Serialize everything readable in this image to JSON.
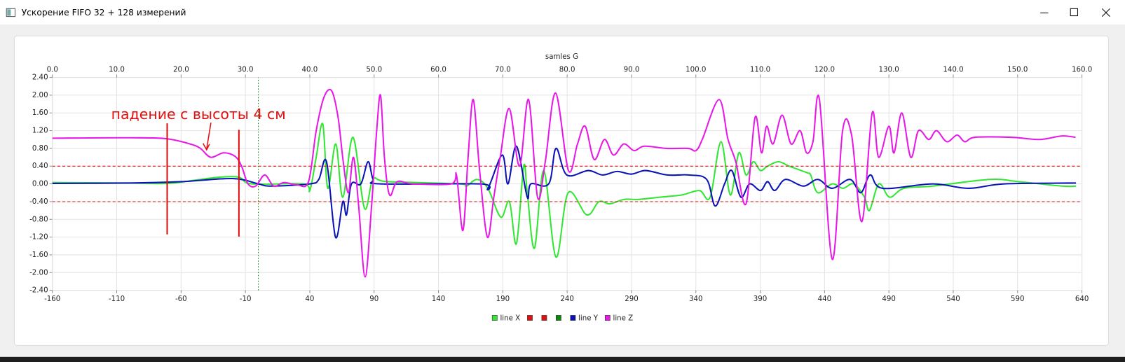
{
  "window": {
    "title": "Ускорение FIFO 32 + 128 измерений"
  },
  "chart_data": {
    "type": "line",
    "top_axis_label": "samles G",
    "annotation": "падение с высоты 4 см",
    "grid": true,
    "xlim": [
      -160,
      640
    ],
    "xticks": [
      -160,
      -110,
      -60,
      -10,
      40,
      90,
      140,
      190,
      240,
      290,
      340,
      390,
      440,
      490,
      540,
      590,
      640
    ],
    "x2lim": [
      0,
      160
    ],
    "x2ticks": [
      {
        "value": 0,
        "label": "0.0"
      },
      {
        "value": 10,
        "label": "10.0"
      },
      {
        "value": 20,
        "label": "20.0"
      },
      {
        "value": 30,
        "label": "30.0"
      },
      {
        "value": 40,
        "label": "40.0"
      },
      {
        "value": 50,
        "label": "50.0"
      },
      {
        "value": 60,
        "label": "60.0"
      },
      {
        "value": 70,
        "label": "70.0"
      },
      {
        "value": 80,
        "label": "80.0"
      },
      {
        "value": 90,
        "label": "90.0"
      },
      {
        "value": 100,
        "label": "100.0"
      },
      {
        "value": 110,
        "label": "110.0"
      },
      {
        "value": 120,
        "label": "120.0"
      },
      {
        "value": 130,
        "label": "130.0"
      },
      {
        "value": 140,
        "label": "140.0"
      },
      {
        "value": 150,
        "label": "150.0"
      },
      {
        "value": 160,
        "label": "160.0"
      }
    ],
    "ylim": [
      -2.4,
      2.4
    ],
    "yticks": [
      {
        "value": 2.4,
        "label": "2.40"
      },
      {
        "value": 2,
        "label": "2.00"
      },
      {
        "value": 1.6,
        "label": "1.60"
      },
      {
        "value": 1.2,
        "label": "1.20"
      },
      {
        "value": 0.8,
        "label": "0.80"
      },
      {
        "value": 0.4,
        "label": "0.40"
      },
      {
        "value": 0,
        "label": "0.00"
      },
      {
        "value": -0.4,
        "label": "-0.40"
      },
      {
        "value": -0.8,
        "label": "-0.80"
      },
      {
        "value": -1.2,
        "label": "-1.20"
      },
      {
        "value": -1.6,
        "label": "-1.60"
      },
      {
        "value": -2,
        "label": "-2.00"
      },
      {
        "value": -2.4,
        "label": "-2.40"
      }
    ],
    "series": [
      {
        "name": "line X",
        "color": "#33e633",
        "dash": "solid",
        "x": [
          -160,
          -100,
          -70,
          -50,
          -30,
          -15,
          -5,
          35,
          40,
          45,
          50.1,
          54,
          60.2,
          65.7,
          73.6,
          82.5,
          89.2,
          100.3,
          156,
          161.6,
          170,
          178.4,
          188.4,
          195.1,
          200.6,
          206.2,
          209,
          214.6,
          221.8,
          231.3,
          240.8,
          255.3,
          264.7,
          273.1,
          284.3,
          295.4,
          312.1,
          328.9,
          342.8,
          351.1,
          359.5,
          366.8,
          373.4,
          379,
          384.6,
          390.2,
          395.7,
          404.1,
          412.5,
          426.4,
          429.2,
          434.8,
          445.9,
          454.3,
          462.6,
          471,
          474.9,
          482.2,
          490.6,
          501.7,
          524,
          568.5,
          590.8,
          624.3,
          635.4
        ],
        "values": [
          0.03,
          0.02,
          0.01,
          0.08,
          0.15,
          0.15,
          0,
          0,
          -0.15,
          0.6,
          1.35,
          -0.1,
          0.9,
          -0.3,
          1.05,
          -0.55,
          0.1,
          0.05,
          0,
          -0.05,
          0.1,
          -0.1,
          -0.75,
          -0.4,
          -1.35,
          0.4,
          -0.2,
          -1.45,
          0.3,
          -1.65,
          -0.2,
          -0.7,
          -0.4,
          -0.45,
          -0.35,
          -0.35,
          -0.3,
          -0.25,
          -0.15,
          -0.3,
          0.95,
          -0.25,
          0.7,
          0.2,
          0.5,
          0.3,
          0.4,
          0.5,
          0.4,
          0.25,
          0.2,
          -0.2,
          0,
          -0.1,
          0,
          -0.3,
          -0.6,
          0,
          -0.3,
          -0.1,
          -0.05,
          0.1,
          0.05,
          -0.05,
          -0.05
        ]
      },
      {
        "color": "#e01010",
        "dash": "dashed",
        "x": [
          -160,
          640
        ],
        "values": [
          0.4,
          0.4
        ]
      },
      {
        "color": "#e01010",
        "dash": "dashed",
        "x": [
          -160,
          640
        ],
        "values": [
          -0.4,
          -0.4
        ]
      },
      {
        "color": "#0a8a0a",
        "dash": "dotted",
        "x": [
          0,
          0
        ],
        "values": [
          -2.4,
          2.4
        ]
      },
      {
        "name": "line Y",
        "color": "#0a14b4",
        "dash": "solid",
        "x": [
          -160,
          -100,
          -60,
          -20,
          0,
          10,
          40,
          47,
          53,
          60,
          65.7,
          68.5,
          72.4,
          79.7,
          85.3,
          89.2,
          94.7,
          172.8,
          178.4,
          189.5,
          194,
          200.6,
          209,
          211.8,
          225.7,
          231.3,
          239.7,
          256.4,
          267.5,
          278.7,
          289.8,
          301,
          317.7,
          334.4,
          348.4,
          355,
          362.3,
          367.9,
          375,
          381.8,
          390.2,
          395.7,
          401.3,
          409.7,
          423.6,
          434.8,
          445.9,
          459.8,
          468.2,
          475.5,
          485,
          524,
          551.8,
          579.7,
          635.4
        ],
        "values": [
          0.01,
          0.02,
          0.05,
          0.12,
          0,
          -0.05,
          0,
          0.1,
          0.5,
          -1.2,
          -0.4,
          -0.7,
          0,
          0,
          0.5,
          0.1,
          0,
          0,
          -0.1,
          0.65,
          0,
          0.85,
          -0.3,
          0,
          0,
          0.8,
          0.2,
          0.3,
          0.2,
          0.28,
          0.22,
          0.3,
          0.2,
          0.2,
          0.1,
          -0.5,
          0,
          0.3,
          -0.3,
          0,
          -0.15,
          0.05,
          -0.15,
          0.1,
          -0.05,
          0.1,
          -0.1,
          0.1,
          -0.2,
          0.2,
          -0.1,
          0,
          -0.1,
          0,
          0.02
        ]
      },
      {
        "name": "line Z",
        "color": "#e619e6",
        "dash": "solid",
        "x": [
          -160,
          -100,
          -72,
          -53,
          -45,
          -37,
          -27,
          -18,
          -13,
          -8,
          -2,
          5,
          12,
          20,
          30,
          39,
          45,
          51,
          57,
          62,
          66,
          70,
          74,
          78,
          83,
          88,
          92,
          95,
          98,
          102,
          108,
          120,
          150,
          154,
          159,
          163,
          167,
          172,
          178,
          183,
          188,
          195,
          203,
          210,
          217,
          223,
          231,
          241,
          248,
          254,
          261,
          269,
          276,
          284,
          292,
          300,
          317,
          334,
          340,
          345,
          358,
          365,
          371,
          379,
          386,
          391,
          395,
          400,
          407,
          414,
          421,
          426,
          431,
          436,
          446,
          454,
          461,
          469,
          477,
          482,
          490,
          494,
          500,
          507,
          513,
          521,
          527,
          535,
          543,
          549,
          557,
          585,
          607,
          624,
          635
        ],
        "values": [
          1.03,
          1.04,
          1.02,
          0.9,
          0.8,
          0.6,
          0.7,
          0.62,
          0.4,
          0,
          -0.05,
          0.2,
          -0.05,
          0.03,
          -0.02,
          0.05,
          1.2,
          1.95,
          2.1,
          1.5,
          0.5,
          -0.2,
          0.6,
          -0.5,
          -2.1,
          -0.5,
          1.2,
          2,
          0.6,
          -0.25,
          0.05,
          0,
          0,
          0.2,
          -1.05,
          0.6,
          1.9,
          0.3,
          -1.2,
          -0.3,
          0.6,
          1.7,
          0.4,
          1.9,
          -0.3,
          0.5,
          2.05,
          0.3,
          0.9,
          1.3,
          0.55,
          1,
          0.65,
          0.9,
          0.75,
          0.85,
          0.8,
          0.8,
          0.75,
          1,
          1.9,
          1,
          0.5,
          -0.45,
          1.5,
          0.7,
          1.3,
          0.9,
          1.55,
          0.9,
          1.2,
          0.7,
          0.95,
          1.9,
          -1.7,
          1.2,
          1.1,
          -0.85,
          1.6,
          0.6,
          1.3,
          0.7,
          1.6,
          0.6,
          1.2,
          1,
          1.2,
          0.95,
          1.1,
          0.95,
          1.05,
          1.05,
          1,
          1.08,
          1.05
        ]
      }
    ]
  }
}
